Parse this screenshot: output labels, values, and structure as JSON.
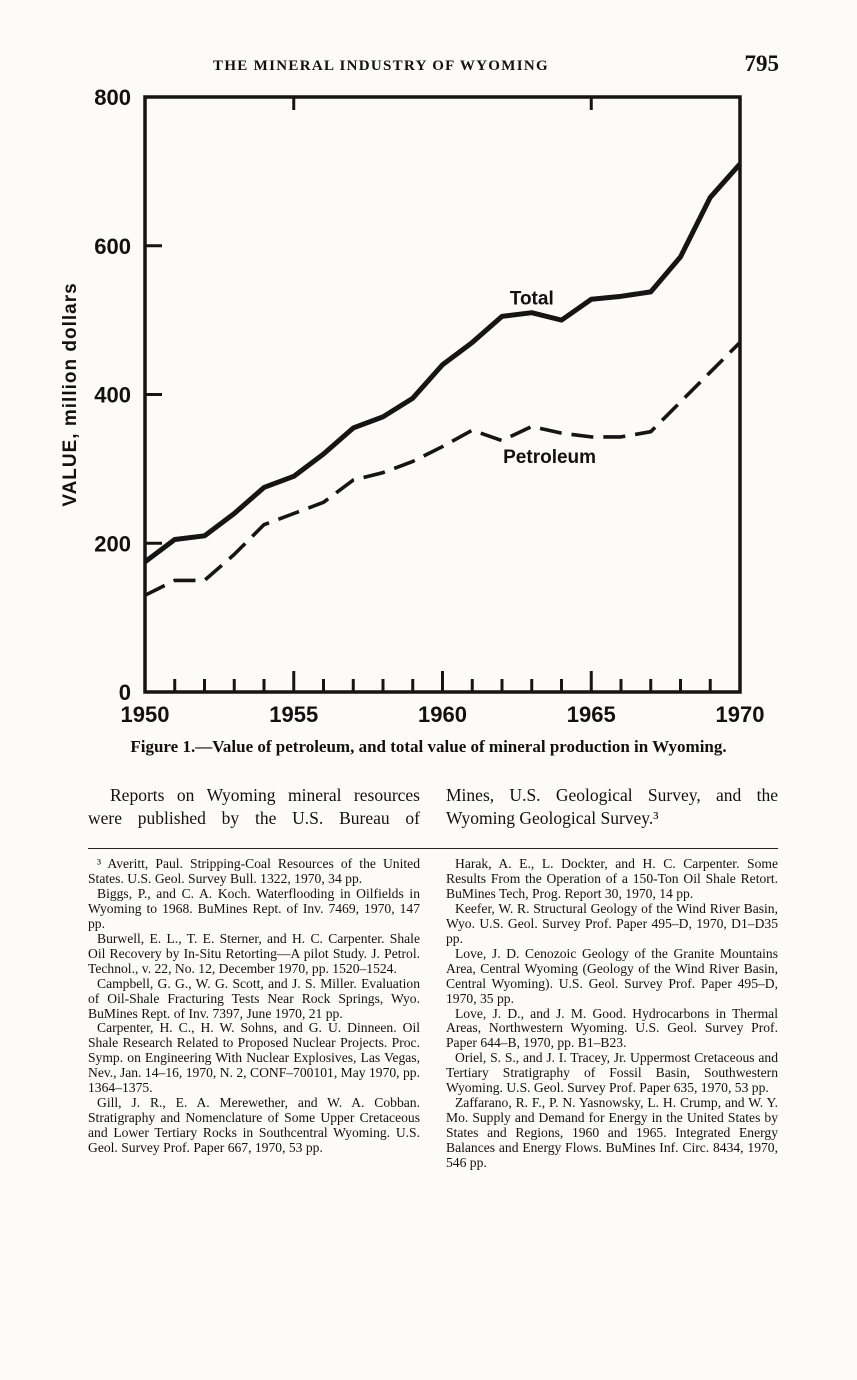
{
  "header": {
    "title": "THE MINERAL INDUSTRY OF WYOMING",
    "page_number": "795"
  },
  "chart_data": {
    "type": "line",
    "title": "",
    "xlabel": "",
    "ylabel": "VALUE, million dollars",
    "xlim": [
      1950,
      1970
    ],
    "ylim": [
      0,
      800
    ],
    "y_ticks": [
      0,
      200,
      400,
      600,
      800
    ],
    "x_ticks_labeled": [
      1950,
      1955,
      1960,
      1965,
      1970
    ],
    "top_ticks": [
      1955,
      1965
    ],
    "grid": "off",
    "legend_position": "inline-labels",
    "x": [
      1950,
      1951,
      1952,
      1953,
      1954,
      1955,
      1956,
      1957,
      1958,
      1959,
      1960,
      1961,
      1962,
      1963,
      1964,
      1965,
      1966,
      1967,
      1968,
      1969,
      1970
    ],
    "series": [
      {
        "name": "Total",
        "style": "solid",
        "values": [
          175,
          205,
          210,
          240,
          275,
          290,
          320,
          355,
          370,
          395,
          440,
          470,
          505,
          510,
          500,
          528,
          532,
          538,
          585,
          665,
          710
        ]
      },
      {
        "name": "Petroleum",
        "style": "dashed",
        "values": [
          130,
          150,
          150,
          185,
          225,
          240,
          255,
          285,
          295,
          310,
          330,
          352,
          338,
          357,
          348,
          343,
          343,
          350,
          390,
          430,
          470
        ]
      }
    ],
    "annotations": [
      {
        "text": "Total",
        "year": 1963.0,
        "value": 513
      },
      {
        "text": "Petroleum",
        "year": 1963.6,
        "value": 300
      }
    ]
  },
  "caption": "Figure 1.—Value of petroleum, and total value of mineral production in Wyoming.",
  "body": {
    "left": "Reports on Wyoming mineral resources were published by the U.S. Bureau of",
    "right": "Mines, U.S. Geological Survey, and the Wyoming Geological Survey.³"
  },
  "footnotes": {
    "left": [
      "³ Averitt, Paul. Stripping-Coal Resources of the United States. U.S. Geol. Survey Bull. 1322, 1970, 34 pp.",
      "Biggs, P., and C. A. Koch. Waterflooding in Oilfields in Wyoming to 1968. BuMines Rept. of Inv. 7469, 1970, 147 pp.",
      "Burwell, E. L., T. E. Sterner, and H. C. Carpenter. Shale Oil Recovery by In-Situ Retorting—A pilot Study. J. Petrol. Technol., v. 22, No. 12, December 1970, pp. 1520–1524.",
      "Campbell, G. G., W. G. Scott, and J. S. Miller. Evaluation of Oil-Shale Fracturing Tests Near Rock Springs, Wyo. BuMines Rept. of Inv. 7397, June 1970, 21 pp.",
      "Carpenter, H. C., H. W. Sohns, and G. U. Dinneen. Oil Shale Research Related to Proposed Nuclear Projects. Proc. Symp. on Engineering With Nuclear Explosives, Las Vegas, Nev., Jan. 14–16, 1970, N. 2, CONF–700101, May 1970, pp. 1364–1375.",
      "Gill, J. R., E. A. Merewether, and W. A. Cobban. Stratigraphy and Nomenclature of Some Upper Cretaceous and Lower Tertiary Rocks in Southcentral Wyoming. U.S. Geol. Survey Prof. Paper 667, 1970, 53 pp."
    ],
    "right": [
      "Harak, A. E., L. Dockter, and H. C. Carpenter. Some Results From the Operation of a 150-Ton Oil Shale Retort. BuMines Tech, Prog. Report 30, 1970, 14 pp.",
      "Keefer, W. R. Structural Geology of the Wind River Basin, Wyo. U.S. Geol. Survey Prof. Paper 495–D, 1970, D1–D35 pp.",
      "Love, J. D. Cenozoic Geology of the Granite Mountains Area, Central Wyoming (Geology of the Wind River Basin, Central Wyoming). U.S. Geol. Survey Prof. Paper 495–D, 1970, 35 pp.",
      "Love, J. D., and J. M. Good. Hydrocarbons in Thermal Areas, Northwestern Wyoming. U.S. Geol. Survey Prof. Paper 644–B, 1970, pp. B1–B23.",
      "Oriel, S. S., and J. I. Tracey, Jr. Uppermost Cretaceous and Tertiary Stratigraphy of Fossil Basin, Southwestern Wyoming. U.S. Geol. Survey Prof. Paper 635, 1970, 53 pp.",
      "Zaffarano, R. F., P. N. Yasnowsky, L. H. Crump, and W. Y. Mo. Supply and Demand for Energy in the United States by States and Regions, 1960 and 1965. Integrated Energy Balances and Energy Flows. BuMines Inf. Circ. 8434, 1970, 546 pp."
    ]
  }
}
